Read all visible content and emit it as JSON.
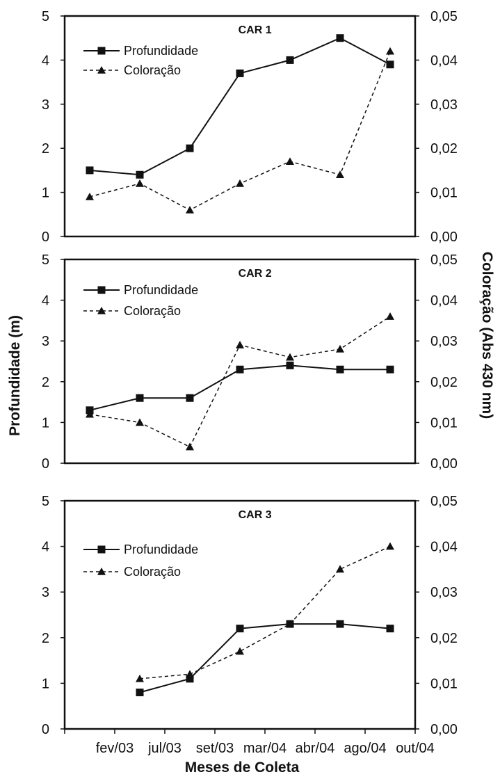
{
  "figure": {
    "ylabel_left": "Profundidade (m)",
    "ylabel_right": "Coloração (Abs 430 nm)",
    "xlabel": "Meses de Coleta"
  },
  "chart_data": [
    {
      "type": "line",
      "title": "CAR 1",
      "categories": [
        "fev/03",
        "jul/03",
        "set/03",
        "mar/04",
        "abr/04",
        "ago/04",
        "out/04"
      ],
      "ylim_left": [
        0,
        5
      ],
      "ylim_right": [
        0,
        0.05
      ],
      "left_ticks": [
        "0",
        "1",
        "2",
        "3",
        "4",
        "5"
      ],
      "right_ticks": [
        "0,00",
        "0,01",
        "0,02",
        "0,03",
        "0,04",
        "0,05"
      ],
      "legend_position": "top-left",
      "series": [
        {
          "name": "Profundidade",
          "axis": "left",
          "marker": "square",
          "style": "solid",
          "values": [
            1.5,
            1.4,
            2.0,
            3.7,
            4.0,
            4.5,
            3.9
          ]
        },
        {
          "name": "Coloração",
          "axis": "right",
          "marker": "triangle",
          "style": "dashed",
          "values": [
            0.009,
            0.012,
            0.006,
            0.012,
            0.017,
            0.014,
            0.042
          ]
        }
      ]
    },
    {
      "type": "line",
      "title": "CAR 2",
      "categories": [
        "fev/03",
        "jul/03",
        "set/03",
        "mar/04",
        "abr/04",
        "ago/04",
        "out/04"
      ],
      "ylim_left": [
        0,
        5
      ],
      "ylim_right": [
        0,
        0.05
      ],
      "left_ticks": [
        "0",
        "1",
        "2",
        "3",
        "4",
        "5"
      ],
      "right_ticks": [
        "0,00",
        "0,01",
        "0,02",
        "0,03",
        "0,04",
        "0,05"
      ],
      "legend_position": "top-left",
      "series": [
        {
          "name": "Profundidade",
          "axis": "left",
          "marker": "square",
          "style": "solid",
          "values": [
            1.3,
            1.6,
            1.6,
            2.3,
            2.4,
            2.3,
            2.3
          ]
        },
        {
          "name": "Coloração",
          "axis": "right",
          "marker": "triangle",
          "style": "dashed",
          "values": [
            0.012,
            0.01,
            0.004,
            0.029,
            0.026,
            0.028,
            0.036
          ]
        }
      ]
    },
    {
      "type": "line",
      "title": "CAR 3",
      "categories": [
        "fev/03",
        "jul/03",
        "set/03",
        "mar/04",
        "abr/04",
        "ago/04",
        "out/04"
      ],
      "ylim_left": [
        0,
        5
      ],
      "ylim_right": [
        0,
        0.05
      ],
      "left_ticks": [
        "0",
        "1",
        "2",
        "3",
        "4",
        "5"
      ],
      "right_ticks": [
        "0,00",
        "0,01",
        "0,02",
        "0,03",
        "0,04",
        "0,05"
      ],
      "legend_position": "top-left",
      "series": [
        {
          "name": "Profundidade",
          "axis": "left",
          "marker": "square",
          "style": "solid",
          "values": [
            null,
            0.8,
            1.1,
            2.2,
            2.3,
            2.3,
            2.2
          ]
        },
        {
          "name": "Coloração",
          "axis": "right",
          "marker": "triangle",
          "style": "dashed",
          "values": [
            null,
            0.011,
            0.012,
            0.017,
            0.023,
            0.035,
            0.04
          ]
        }
      ]
    }
  ]
}
